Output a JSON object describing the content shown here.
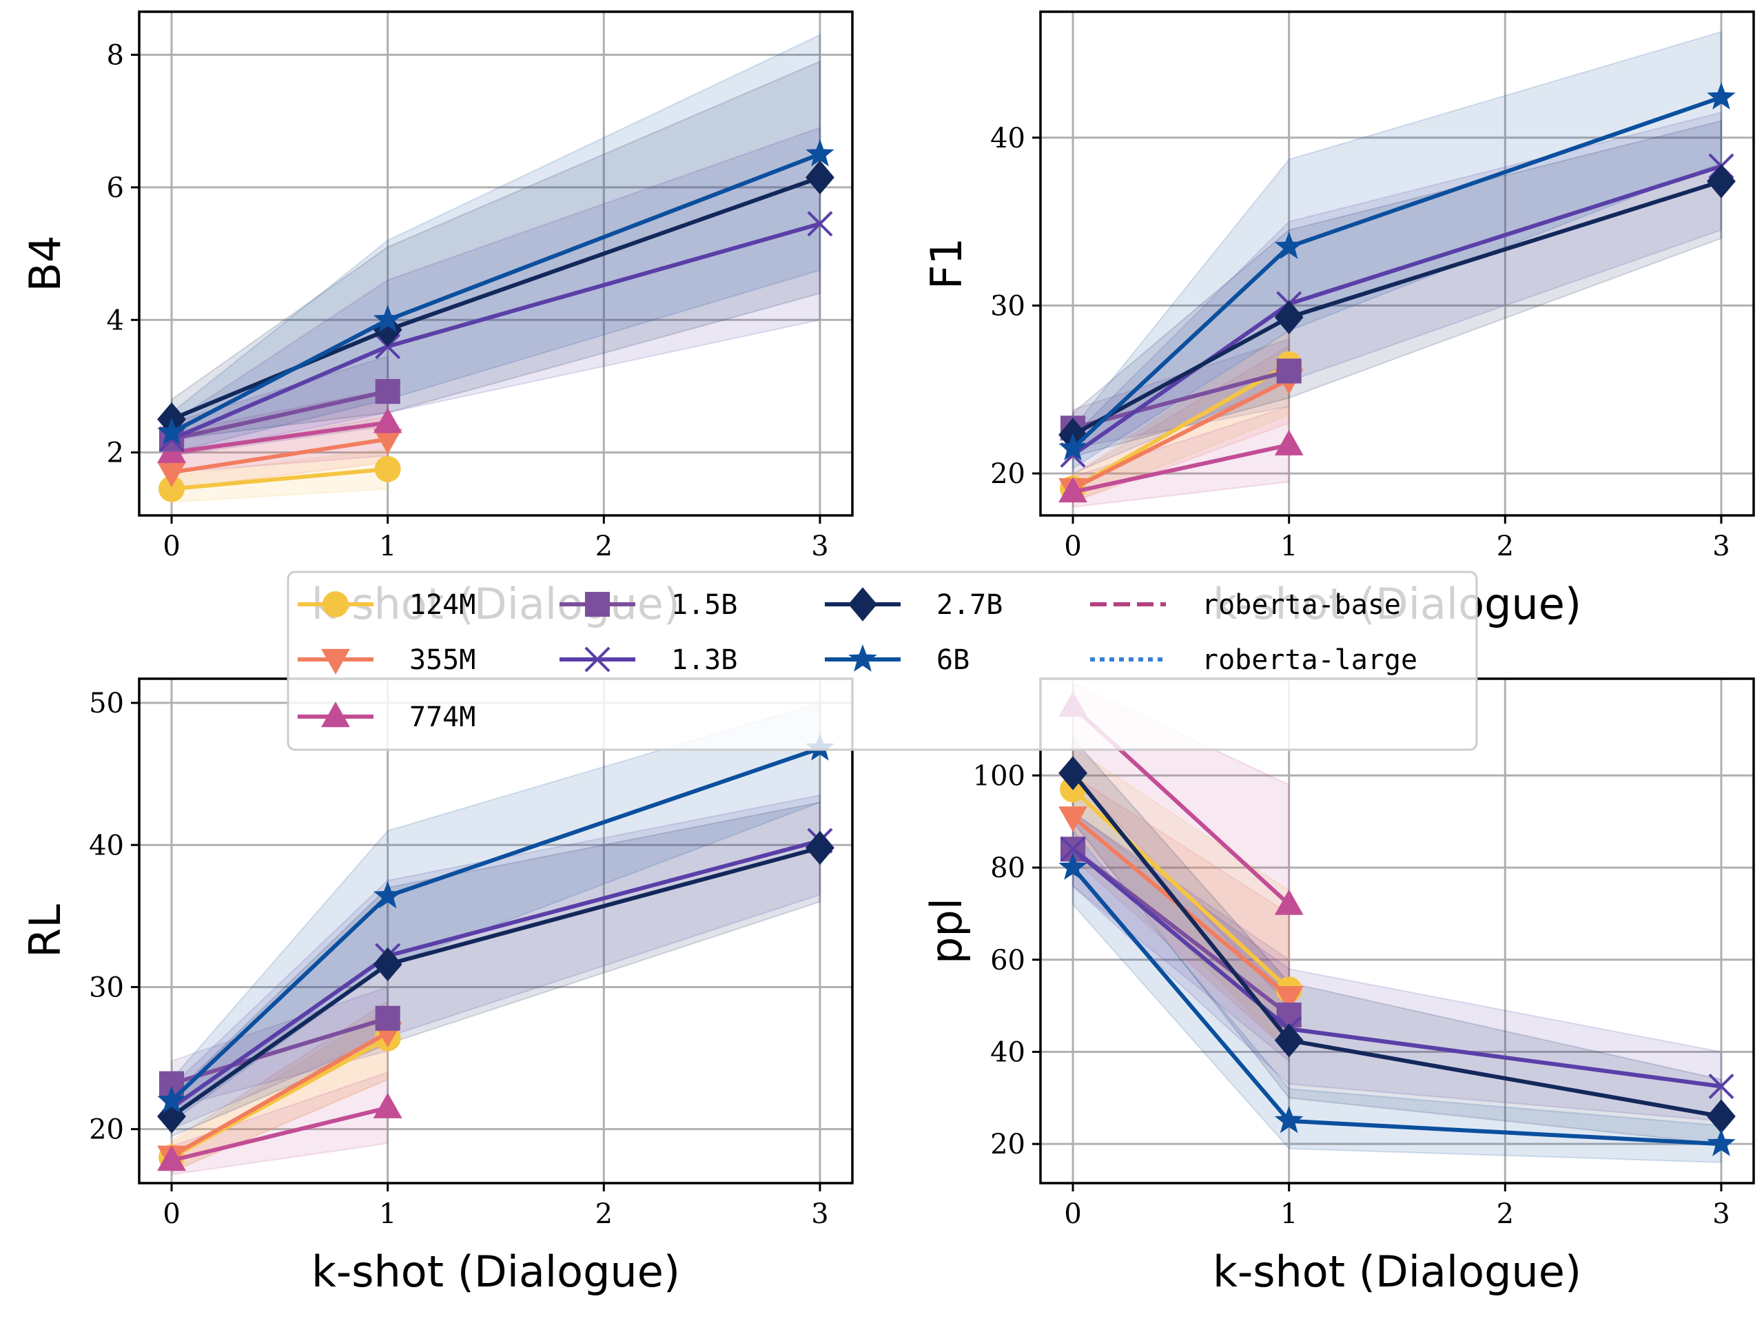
{
  "figure": {
    "legend_location": "center, between rows"
  },
  "legend": {
    "entries": [
      {
        "label": "124M",
        "color": "#f5c542",
        "marker": "circle",
        "line": "solid"
      },
      {
        "label": "355M",
        "color": "#f27d5e",
        "marker": "triangle-down",
        "line": "solid"
      },
      {
        "label": "774M",
        "color": "#c24d95",
        "marker": "triangle-up",
        "line": "solid"
      },
      {
        "label": "1.5B",
        "color": "#7b4f9e",
        "marker": "square",
        "line": "solid"
      },
      {
        "label": "1.3B",
        "color": "#5a3fa8",
        "marker": "x",
        "line": "solid"
      },
      {
        "label": "2.7B",
        "color": "#13285a",
        "marker": "diamond",
        "line": "solid"
      },
      {
        "label": "6B",
        "color": "#0b4f9e",
        "marker": "star",
        "line": "solid"
      },
      {
        "label": "roberta-base",
        "color": "#b5407f",
        "marker": "none",
        "line": "dashed"
      },
      {
        "label": "roberta-large",
        "color": "#3a7fd5",
        "marker": "none",
        "line": "dotted"
      }
    ]
  },
  "chart_data": [
    {
      "type": "line",
      "panel": "top-left",
      "xlabel": "k-shot (Dialogue)",
      "ylabel": "B4",
      "xlim": [
        -0.15,
        3.15
      ],
      "ylim": [
        1.05,
        8.65
      ],
      "xticks": [
        "0",
        "1",
        "2",
        "3"
      ],
      "yticks": [
        2,
        4,
        6,
        8
      ],
      "grid": true,
      "series": [
        {
          "name": "124M",
          "x": [
            0,
            1
          ],
          "y": [
            1.45,
            1.75
          ],
          "band": [
            [
              1.25,
              1.65
            ],
            [
              1.45,
              2.05
            ]
          ]
        },
        {
          "name": "355M",
          "x": [
            0,
            1
          ],
          "y": [
            1.7,
            2.2
          ],
          "band": [
            [
              1.45,
              1.95
            ],
            [
              1.85,
              2.55
            ]
          ]
        },
        {
          "name": "774M",
          "x": [
            0,
            1
          ],
          "y": [
            2.0,
            2.45
          ],
          "band": [
            [
              1.7,
              2.3
            ],
            [
              1.95,
              2.95
            ]
          ]
        },
        {
          "name": "1.5B",
          "x": [
            0,
            1
          ],
          "y": [
            2.2,
            2.92
          ],
          "band": [
            [
              1.95,
              2.45
            ],
            [
              2.4,
              3.45
            ]
          ]
        },
        {
          "name": "1.3B",
          "x": [
            0,
            1,
            3
          ],
          "y": [
            2.2,
            3.6,
            5.45
          ],
          "band": [
            [
              1.95,
              2.45
            ],
            [
              2.6,
              4.6
            ],
            [
              4.0,
              6.9
            ]
          ]
        },
        {
          "name": "2.7B",
          "x": [
            0,
            1,
            3
          ],
          "y": [
            2.5,
            3.85,
            6.15
          ],
          "band": [
            [
              2.2,
              2.8
            ],
            [
              2.6,
              5.1
            ],
            [
              4.4,
              7.9
            ]
          ]
        },
        {
          "name": "6B",
          "x": [
            0,
            1,
            3
          ],
          "y": [
            2.3,
            4.0,
            6.5
          ],
          "band": [
            [
              2.0,
              2.6
            ],
            [
              2.8,
              5.2
            ],
            [
              4.75,
              8.3
            ]
          ]
        }
      ]
    },
    {
      "type": "line",
      "panel": "top-right",
      "xlabel": "k-shot (Dialogue)",
      "ylabel": "F1",
      "xlim": [
        -0.15,
        3.15
      ],
      "ylim": [
        17.5,
        47.5
      ],
      "xticks": [
        "0",
        "1",
        "2",
        "3"
      ],
      "yticks": [
        20,
        30,
        40
      ],
      "grid": true,
      "series": [
        {
          "name": "124M",
          "x": [
            0,
            1
          ],
          "y": [
            19.1,
            26.5
          ],
          "band": [
            [
              18.3,
              19.9
            ],
            [
              23.5,
              28.5
            ]
          ]
        },
        {
          "name": "355M",
          "x": [
            0,
            1
          ],
          "y": [
            19.1,
            25.6
          ],
          "band": [
            [
              18.3,
              19.9
            ],
            [
              23.0,
              27.6
            ]
          ]
        },
        {
          "name": "774M",
          "x": [
            0,
            1
          ],
          "y": [
            18.9,
            21.7
          ],
          "band": [
            [
              18.0,
              19.8
            ],
            [
              19.5,
              24.0
            ]
          ]
        },
        {
          "name": "1.5B",
          "x": [
            0,
            1
          ],
          "y": [
            22.7,
            26.1
          ],
          "band": [
            [
              21.5,
              23.8
            ],
            [
              24.0,
              28.0
            ]
          ]
        },
        {
          "name": "1.3B",
          "x": [
            0,
            1,
            3
          ],
          "y": [
            21.1,
            30.1,
            38.3
          ],
          "band": [
            [
              20.0,
              22.2
            ],
            [
              25.5,
              35.0
            ],
            [
              34.5,
              41.5
            ]
          ]
        },
        {
          "name": "2.7B",
          "x": [
            0,
            1,
            3
          ],
          "y": [
            22.3,
            29.3,
            37.4
          ],
          "band": [
            [
              21.0,
              23.6
            ],
            [
              24.5,
              34.5
            ],
            [
              34.0,
              41.0
            ]
          ]
        },
        {
          "name": "6B",
          "x": [
            0,
            1,
            3
          ],
          "y": [
            21.5,
            33.5,
            42.4
          ],
          "band": [
            [
              20.3,
              22.7
            ],
            [
              28.5,
              38.7
            ],
            [
              38.5,
              46.3
            ]
          ]
        }
      ]
    },
    {
      "type": "line",
      "panel": "bottom-left",
      "xlabel": "k-shot (Dialogue)",
      "ylabel": "RL",
      "xlim": [
        -0.15,
        3.15
      ],
      "ylim": [
        16.2,
        51.7
      ],
      "xticks": [
        "0",
        "1",
        "2",
        "3"
      ],
      "yticks": [
        20,
        30,
        40,
        50
      ],
      "grid": true,
      "series": [
        {
          "name": "124M",
          "x": [
            0,
            1
          ],
          "y": [
            18.0,
            26.4
          ],
          "band": [
            [
              17.0,
              19.0
            ],
            [
              23.5,
              28.5
            ]
          ]
        },
        {
          "name": "355M",
          "x": [
            0,
            1
          ],
          "y": [
            18.1,
            26.8
          ],
          "band": [
            [
              17.0,
              19.2
            ],
            [
              23.5,
              29.0
            ]
          ]
        },
        {
          "name": "774M",
          "x": [
            0,
            1
          ],
          "y": [
            17.8,
            21.5
          ],
          "band": [
            [
              16.8,
              18.8
            ],
            [
              19.0,
              24.0
            ]
          ]
        },
        {
          "name": "1.5B",
          "x": [
            0,
            1
          ],
          "y": [
            23.2,
            27.8
          ],
          "band": [
            [
              21.5,
              24.8
            ],
            [
              25.5,
              30.0
            ]
          ]
        },
        {
          "name": "1.3B",
          "x": [
            0,
            1,
            3
          ],
          "y": [
            21.5,
            32.2,
            40.3
          ],
          "band": [
            [
              20.0,
              23.0
            ],
            [
              26.5,
              37.5
            ],
            [
              36.5,
              43.5
            ]
          ]
        },
        {
          "name": "2.7B",
          "x": [
            0,
            1,
            3
          ],
          "y": [
            20.9,
            31.6,
            39.8
          ],
          "band": [
            [
              19.5,
              22.3
            ],
            [
              26.0,
              37.0
            ],
            [
              36.0,
              43.0
            ]
          ]
        },
        {
          "name": "6B",
          "x": [
            0,
            1,
            3
          ],
          "y": [
            22.0,
            36.4,
            46.8
          ],
          "band": [
            [
              20.5,
              23.5
            ],
            [
              31.5,
              41.0
            ],
            [
              43.0,
              50.0
            ]
          ]
        }
      ]
    },
    {
      "type": "line",
      "panel": "bottom-right",
      "xlabel": "k-shot (Dialogue)",
      "ylabel": "ppl",
      "xlim": [
        -0.15,
        3.15
      ],
      "ylim": [
        11.5,
        121.0
      ],
      "xticks": [
        "0",
        "1",
        "2",
        "3"
      ],
      "yticks": [
        20,
        40,
        60,
        80,
        100
      ],
      "grid": true,
      "series": [
        {
          "name": "124M",
          "x": [
            0,
            1
          ],
          "y": [
            97.0,
            53.5
          ],
          "band": [
            [
              88.0,
              106.0
            ],
            [
              40.0,
              75.0
            ]
          ]
        },
        {
          "name": "355M",
          "x": [
            0,
            1
          ],
          "y": [
            91.0,
            52.0
          ],
          "band": [
            [
              82.0,
              100.0
            ],
            [
              40.0,
              70.0
            ]
          ]
        },
        {
          "name": "774M",
          "x": [
            0,
            1
          ],
          "y": [
            115.0,
            72.0
          ],
          "band": [
            [
              100.0,
              120.0
            ],
            [
              50.0,
              98.0
            ]
          ]
        },
        {
          "name": "1.5B",
          "x": [
            0,
            1
          ],
          "y": [
            84.0,
            48.0
          ],
          "band": [
            [
              76.0,
              92.0
            ],
            [
              38.0,
              60.0
            ]
          ]
        },
        {
          "name": "1.3B",
          "x": [
            0,
            1,
            3
          ],
          "y": [
            84.0,
            45.0,
            32.5
          ],
          "band": [
            [
              76.0,
              92.0
            ],
            [
              33.0,
              58.0
            ],
            [
              25.0,
              40.0
            ]
          ]
        },
        {
          "name": "2.7B",
          "x": [
            0,
            1,
            3
          ],
          "y": [
            100.5,
            42.5,
            26.0
          ],
          "band": [
            [
              90.0,
              108.0
            ],
            [
              30.0,
              55.0
            ],
            [
              20.0,
              34.0
            ]
          ]
        },
        {
          "name": "6B",
          "x": [
            0,
            1,
            3
          ],
          "y": [
            80.0,
            25.0,
            20.0
          ],
          "band": [
            [
              72.0,
              88.0
            ],
            [
              19.0,
              32.0
            ],
            [
              16.0,
              24.0
            ]
          ]
        }
      ]
    }
  ]
}
